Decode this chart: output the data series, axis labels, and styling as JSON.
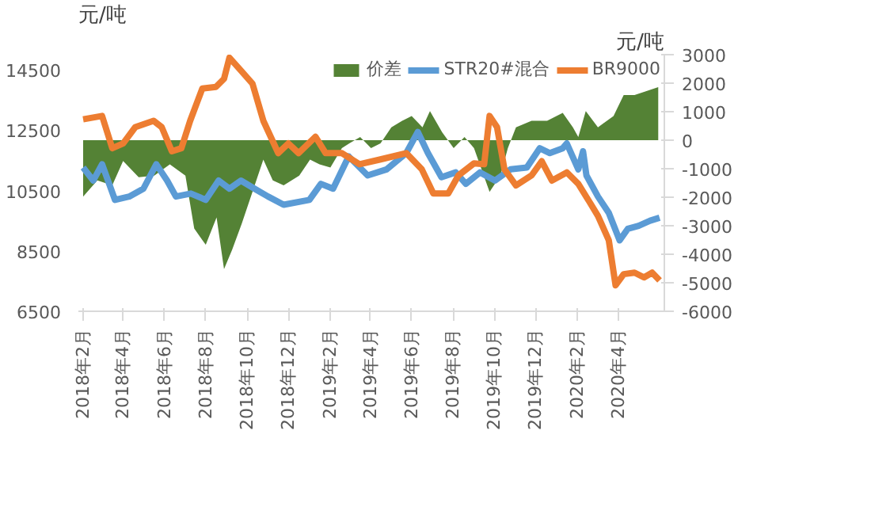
{
  "chart_data": {
    "type": "line",
    "ylabel": "元/吨",
    "y2label": "元/吨",
    "legend": "top",
    "grid": false,
    "marker": "none",
    "line_style": "solid",
    "xlim": [
      "2018-01-25",
      "2020-06-08"
    ],
    "ylim": [
      6500,
      15000
    ],
    "yticks": [
      6500,
      8500,
      10500,
      12500,
      14500
    ],
    "y2lim": [
      -6000,
      3000
    ],
    "y2ticks": [
      -6000,
      -5000,
      -4000,
      -3000,
      -2000,
      -1000,
      0,
      1000,
      2000,
      3000
    ],
    "xticks": [
      {
        "value": "2018-02",
        "label": "2018年2月"
      },
      {
        "value": "2018-04",
        "label": "2018年4月"
      },
      {
        "value": "2018-06",
        "label": "2018年6月"
      },
      {
        "value": "2018-08",
        "label": "2018年8月"
      },
      {
        "value": "2018-10",
        "label": "2018年10月"
      },
      {
        "value": "2018-12",
        "label": "2018年12月"
      },
      {
        "value": "2019-02",
        "label": "2019年2月"
      },
      {
        "value": "2019-04",
        "label": "2019年4月"
      },
      {
        "value": "2019-06",
        "label": "2019年6月"
      },
      {
        "value": "2019-08",
        "label": "2019年8月"
      },
      {
        "value": "2019-10",
        "label": "2019年10月"
      },
      {
        "value": "2019-12",
        "label": "2019年12月"
      },
      {
        "value": "2020-02",
        "label": "2020年2月"
      },
      {
        "value": "2020-04",
        "label": "2020年4月"
      }
    ],
    "series": [
      {
        "name": "价差",
        "type": "area",
        "axis": "y2",
        "color": "#548235",
        "x": [
          "2018-02-01",
          "2018-02-22",
          "2018-03-16",
          "2018-04-01",
          "2018-04-24",
          "2018-05-17",
          "2018-06-09",
          "2018-07-02",
          "2018-07-15",
          "2018-08-01",
          "2018-08-17",
          "2018-08-28",
          "2018-09-09",
          "2018-09-23",
          "2018-10-09",
          "2018-10-25",
          "2018-11-08",
          "2018-11-24",
          "2018-12-17",
          "2019-01-02",
          "2019-01-16",
          "2019-02-01",
          "2019-02-18",
          "2019-03-01",
          "2019-03-17",
          "2019-04-02",
          "2019-04-16",
          "2019-05-02",
          "2019-05-18",
          "2019-06-01",
          "2019-06-17",
          "2019-06-28",
          "2019-07-16",
          "2019-08-02",
          "2019-08-18",
          "2019-09-01",
          "2019-09-24",
          "2019-10-10",
          "2019-10-21",
          "2019-11-02",
          "2019-11-25",
          "2019-12-18",
          "2020-01-10",
          "2020-01-25",
          "2020-02-02",
          "2020-02-13",
          "2020-03-02",
          "2020-03-25",
          "2020-04-09",
          "2020-04-25",
          "2020-05-10",
          "2020-05-30"
        ],
        "values": [
          -1980,
          -1410,
          -1580,
          -730,
          -1300,
          -1240,
          -850,
          -1240,
          -3100,
          -3670,
          -2710,
          -4520,
          -3840,
          -2940,
          -1810,
          -680,
          -1410,
          -1580,
          -1240,
          -680,
          -850,
          -960,
          -280,
          -110,
          110,
          -280,
          -110,
          450,
          680,
          850,
          450,
          1020,
          280,
          -280,
          110,
          -280,
          -1810,
          -1240,
          -280,
          450,
          680,
          680,
          960,
          450,
          110,
          1020,
          450,
          850,
          1580,
          1580,
          1700,
          1860
        ]
      },
      {
        "name": "STR20#混合",
        "color": "#5b9bd5",
        "x": [
          "2018-02-01",
          "2018-02-16",
          "2018-03-01",
          "2018-03-20",
          "2018-04-10",
          "2018-05-01",
          "2018-05-20",
          "2018-06-05",
          "2018-06-18",
          "2018-07-10",
          "2018-08-01",
          "2018-08-20",
          "2018-09-05",
          "2018-09-22",
          "2018-10-12",
          "2018-11-01",
          "2018-11-24",
          "2019-01-01",
          "2019-01-18",
          "2019-02-05",
          "2019-02-28",
          "2019-03-28",
          "2019-04-25",
          "2019-05-24",
          "2019-06-10",
          "2019-06-25",
          "2019-07-15",
          "2019-08-05",
          "2019-08-20",
          "2019-09-10",
          "2019-10-02",
          "2019-10-25",
          "2019-11-18",
          "2019-12-07",
          "2019-12-22",
          "2020-01-10",
          "2020-01-16",
          "2020-02-02",
          "2020-02-09",
          "2020-02-14",
          "2020-03-02",
          "2020-03-18",
          "2020-04-03",
          "2020-04-15",
          "2020-05-01",
          "2020-05-18",
          "2020-06-01"
        ],
        "values": [
          11260,
          10830,
          11370,
          10190,
          10300,
          10560,
          11370,
          10830,
          10300,
          10400,
          10190,
          10830,
          10560,
          10830,
          10560,
          10300,
          10030,
          10190,
          10720,
          10560,
          11630,
          11000,
          11200,
          11740,
          12440,
          11740,
          10940,
          11100,
          10720,
          11100,
          10830,
          11200,
          11260,
          11900,
          11740,
          11900,
          12060,
          11200,
          11800,
          11000,
          10300,
          9760,
          8850,
          9230,
          9330,
          9500,
          9600
        ]
      },
      {
        "name": "BR9000",
        "color": "#ed7d31",
        "x": [
          "2018-02-01",
          "2018-03-01",
          "2018-03-16",
          "2018-04-01",
          "2018-04-19",
          "2018-05-16",
          "2018-05-28",
          "2018-06-12",
          "2018-06-26",
          "2018-07-09",
          "2018-07-27",
          "2018-08-16",
          "2018-08-28",
          "2018-09-05",
          "2018-09-22",
          "2018-10-09",
          "2018-10-25",
          "2018-11-16",
          "2018-12-01",
          "2018-12-16",
          "2019-01-10",
          "2019-01-25",
          "2019-02-18",
          "2019-03-16",
          "2019-04-16",
          "2019-05-24",
          "2019-06-16",
          "2019-07-03",
          "2019-07-25",
          "2019-08-09",
          "2019-09-01",
          "2019-09-16",
          "2019-09-24",
          "2019-10-05",
          "2019-10-16",
          "2019-11-02",
          "2019-11-25",
          "2019-12-10",
          "2019-12-25",
          "2020-01-16",
          "2020-02-02",
          "2020-02-18",
          "2020-03-02",
          "2020-03-18",
          "2020-03-28",
          "2020-04-09",
          "2020-04-25",
          "2020-05-09",
          "2020-05-21",
          "2020-06-01"
        ],
        "values": [
          12860,
          12970,
          11900,
          12060,
          12600,
          12810,
          12600,
          11800,
          11900,
          12810,
          13880,
          13930,
          14200,
          14900,
          14470,
          14040,
          12810,
          11740,
          12060,
          11740,
          12280,
          11740,
          11740,
          11370,
          11530,
          11740,
          11200,
          10400,
          10400,
          11000,
          11400,
          11370,
          12970,
          12600,
          11200,
          10670,
          11000,
          11470,
          10830,
          11100,
          10720,
          10140,
          9660,
          8850,
          7360,
          7730,
          7780,
          7620,
          7780,
          7520
        ]
      }
    ]
  }
}
